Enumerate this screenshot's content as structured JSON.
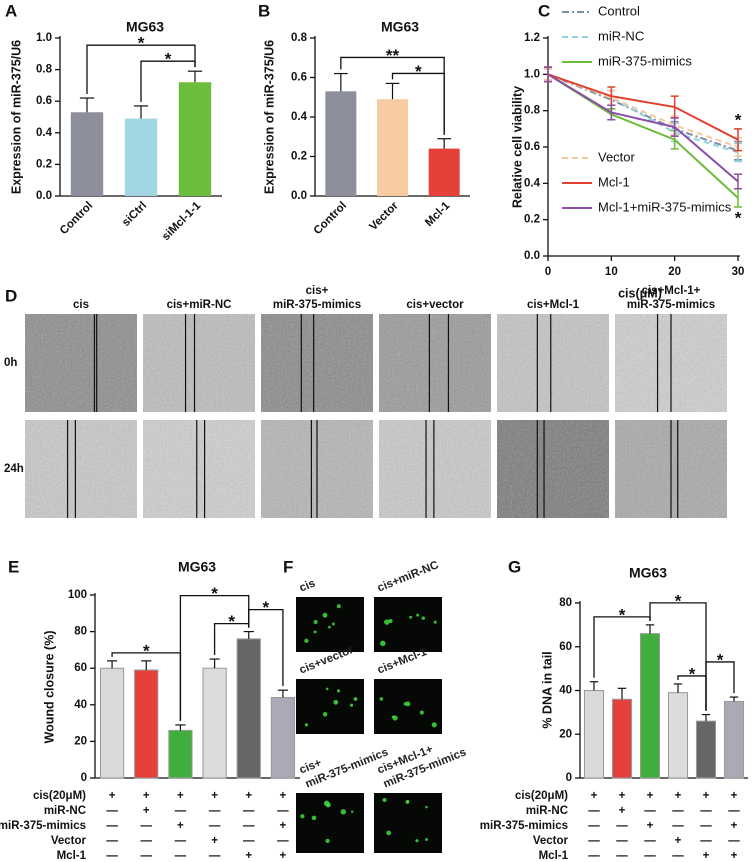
{
  "chart_data": [
    {
      "type": "bar",
      "panel": "A",
      "title": "MG63",
      "y_label": "Expression of miR-375/U6",
      "categories": [
        "Control",
        "siCtrl",
        "siMcl-1-1"
      ],
      "values": [
        0.53,
        0.49,
        0.72
      ],
      "errors": [
        0.09,
        0.08,
        0.07
      ],
      "colors": [
        "#8e8f9c",
        "#a3d6e3",
        "#6cbd3c"
      ],
      "ylim": [
        0,
        1
      ],
      "yticks": [
        {
          "value": 0,
          "label": "0.0"
        },
        0.2,
        0.4,
        0.6,
        0.8,
        {
          "value": 1,
          "label": "1.0"
        }
      ],
      "comparisons": [
        {
          "from": 0,
          "to": 2,
          "label": "*"
        },
        {
          "from": 1,
          "to": 2,
          "label": "*"
        }
      ]
    },
    {
      "type": "bar",
      "panel": "B",
      "title": "MG63",
      "y_label": "Expression of miR-375/U6",
      "categories": [
        "Control",
        "Vector",
        "Mcl-1"
      ],
      "values": [
        0.53,
        0.49,
        0.24
      ],
      "errors": [
        0.09,
        0.08,
        0.05
      ],
      "colors": [
        "#8e8f9c",
        "#f8cba2",
        "#e5403a"
      ],
      "ylim": [
        0,
        0.8
      ],
      "yticks": [
        {
          "value": 0,
          "label": "0.0"
        },
        0.2,
        0.4,
        0.6,
        0.8
      ],
      "comparisons": [
        {
          "from": 0,
          "to": 2,
          "label": "**"
        },
        {
          "from": 1,
          "to": 2,
          "label": "*"
        }
      ]
    },
    {
      "type": "line",
      "panel": "C",
      "y_label": "Relative cell viability",
      "x_label": "cis(μM)",
      "x": [
        0,
        10,
        20,
        30
      ],
      "xlim": [
        0,
        30
      ],
      "xticks": [
        0,
        10,
        20,
        30
      ],
      "ylim": [
        0,
        1.2
      ],
      "yticks": [
        {
          "value": 0,
          "label": "0.0"
        },
        0.2,
        0.4,
        0.6,
        0.8,
        {
          "value": 1,
          "label": "1.0"
        },
        1.2
      ],
      "series": [
        {
          "name": "Control",
          "color": "#7b8ea5",
          "line_style": "dashdot",
          "values": [
            1.0,
            0.86,
            0.7,
            0.58
          ],
          "errors": [
            0.03,
            0.05,
            0.04,
            0.05
          ]
        },
        {
          "name": "miR-NC",
          "color": "#8fd2df",
          "line_style": "dash",
          "values": [
            1.0,
            0.87,
            0.68,
            0.57
          ],
          "errors": [
            0.03,
            0.04,
            0.05,
            0.05
          ]
        },
        {
          "name": "miR-375-mimics",
          "color": "#6cbd3c",
          "line_style": "solid",
          "values": [
            1.0,
            0.78,
            0.64,
            0.32
          ],
          "errors": [
            0.04,
            0.03,
            0.05,
            0.05
          ]
        },
        {
          "name": "Vector",
          "color": "#f5c8a0",
          "line_style": "dash",
          "values": [
            1.0,
            0.87,
            0.72,
            0.6
          ],
          "errors": [
            0.03,
            0.04,
            0.05,
            0.05
          ]
        },
        {
          "name": "Mcl-1",
          "color": "#e0402f",
          "line_style": "solid",
          "values": [
            1.0,
            0.88,
            0.82,
            0.64
          ],
          "errors": [
            0.04,
            0.05,
            0.06,
            0.06
          ]
        },
        {
          "name": "Mcl-1+miR-375-mimics",
          "color": "#8a4ea8",
          "line_style": "solid",
          "values": [
            1.0,
            0.79,
            0.71,
            0.41
          ],
          "errors": [
            0.04,
            0.04,
            0.05,
            0.04
          ]
        }
      ],
      "annotations": [
        "*",
        "*"
      ]
    },
    {
      "type": "bar",
      "panel": "E",
      "title": "MG63",
      "y_label": "Wound closure (%)",
      "values": [
        60,
        59,
        26,
        60,
        76,
        44
      ],
      "errors": [
        4,
        5,
        3,
        5,
        4,
        4
      ],
      "colors": [
        "#d9d9d9",
        "#e5403a",
        "#3fae3c",
        "#dcdcdc",
        "#666666",
        "#a9a9b8"
      ],
      "ylim": [
        0,
        100
      ],
      "yticks": [
        0,
        20,
        40,
        60,
        80,
        100
      ],
      "comparisons": [
        {
          "from": 0,
          "to": 2,
          "label": "*"
        },
        {
          "from": 2,
          "to": 4,
          "label": "*"
        },
        {
          "from": 3,
          "to": 4,
          "label": "*"
        },
        {
          "from": 4,
          "to": 5,
          "label": "*"
        }
      ],
      "treatment_table": {
        "rows": [
          {
            "label": "cis(20μM)",
            "marks": [
              "+",
              "+",
              "+",
              "+",
              "+",
              "+"
            ]
          },
          {
            "label": "miR-NC",
            "marks": [
              "—",
              "+",
              "—",
              "—",
              "—",
              "—"
            ]
          },
          {
            "label": "miR-375-mimics",
            "marks": [
              "—",
              "—",
              "+",
              "—",
              "—",
              "+"
            ]
          },
          {
            "label": "Vector",
            "marks": [
              "—",
              "—",
              "—",
              "+",
              "—",
              "—"
            ]
          },
          {
            "label": "Mcl-1",
            "marks": [
              "—",
              "—",
              "—",
              "—",
              "+",
              "+"
            ]
          }
        ]
      }
    },
    {
      "type": "bar",
      "panel": "G",
      "title": "MG63",
      "y_label": "% DNA in tail",
      "values": [
        40,
        36,
        66,
        39,
        26,
        35
      ],
      "errors": [
        4,
        5,
        4,
        4,
        3,
        2
      ],
      "colors": [
        "#d9d9d9",
        "#e5403a",
        "#3fae3c",
        "#dcdcdc",
        "#666666",
        "#a9a9b8"
      ],
      "ylim": [
        0,
        80
      ],
      "yticks": [
        0,
        20,
        40,
        60,
        80
      ],
      "comparisons": [
        {
          "from": 0,
          "to": 2,
          "label": "*"
        },
        {
          "from": 2,
          "to": 4,
          "label": "*"
        },
        {
          "from": 3,
          "to": 4,
          "label": "*"
        },
        {
          "from": 4,
          "to": 5,
          "label": "*"
        }
      ],
      "treatment_table": {
        "rows": [
          {
            "label": "cis(20μM)",
            "marks": [
              "+",
              "+",
              "+",
              "+",
              "+",
              "+"
            ]
          },
          {
            "label": "miR-NC",
            "marks": [
              "—",
              "+",
              "—",
              "—",
              "—",
              "—"
            ]
          },
          {
            "label": "miR-375-mimics",
            "marks": [
              "—",
              "—",
              "+",
              "—",
              "—",
              "+"
            ]
          },
          {
            "label": "Vector",
            "marks": [
              "—",
              "—",
              "—",
              "+",
              "—",
              "—"
            ]
          },
          {
            "label": "Mcl-1",
            "marks": [
              "—",
              "—",
              "—",
              "—",
              "+",
              "+"
            ]
          }
        ]
      }
    }
  ],
  "image_panels": [
    {
      "letter": "D",
      "columns": [
        [
          "cis"
        ],
        [
          "cis+miR-NC"
        ],
        [
          "cis+",
          "miR-375-mimics"
        ],
        [
          "cis+vector"
        ],
        [
          "cis+Mcl-1"
        ],
        [
          "cis+Mcl-1+",
          "miR-375-mimics"
        ]
      ],
      "rows": [
        "0h",
        "24h"
      ]
    },
    {
      "letter": "F",
      "labels": [
        [
          "cis"
        ],
        [
          "cis+miR-NC"
        ],
        [
          "cis+vector"
        ],
        [
          "cis+Mcl-1"
        ],
        [
          "cis+",
          "miR-375-mimics"
        ],
        [
          "cis+Mcl-1+",
          "miR-375-mimics"
        ]
      ]
    }
  ]
}
